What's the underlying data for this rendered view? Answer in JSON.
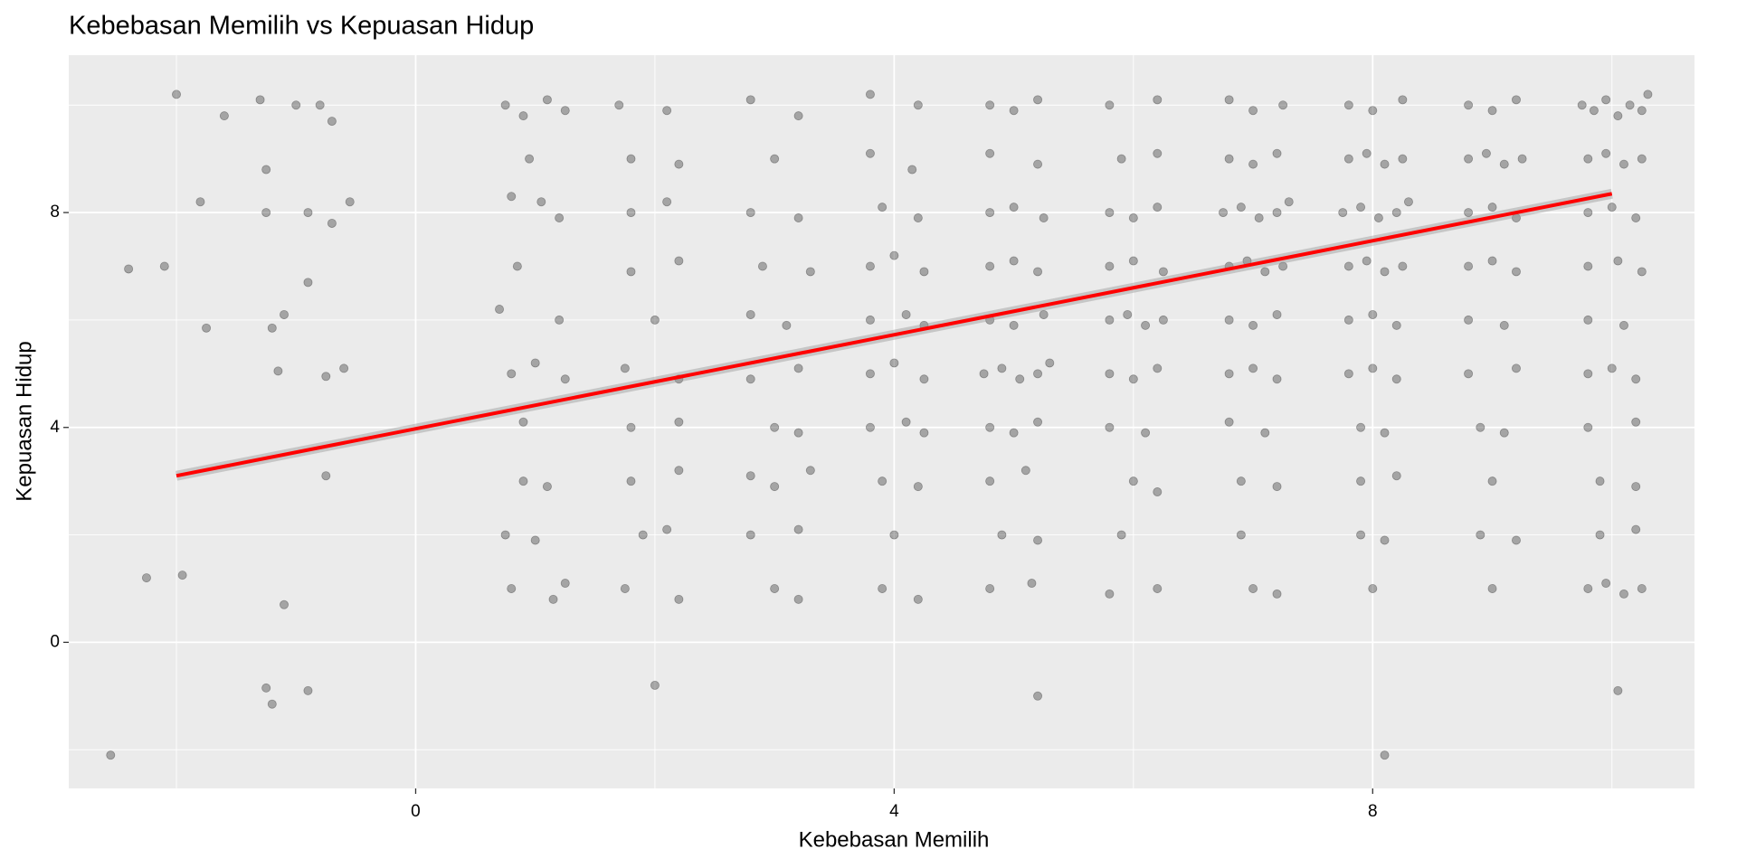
{
  "chart_data": {
    "type": "scatter",
    "title": "Kebebasan Memilih vs Kepuasan Hidup",
    "x_label": "Kebebasan Memilih",
    "y_label": "Kepuasan Hidup",
    "xlim": [
      -2.9,
      10.69
    ],
    "ylim": [
      -2.72,
      10.93
    ],
    "xticks": [
      0,
      4,
      8
    ],
    "yticks": [
      0,
      4,
      8
    ],
    "x_minor_grid": [
      -2,
      2,
      6,
      10
    ],
    "y_minor_grid": [
      -2,
      2,
      6,
      10
    ],
    "grid": true,
    "point_color": "#000000",
    "point_alpha": 0.3,
    "x": [
      -2.55,
      -2.4,
      -2.1,
      -2.0,
      -1.95,
      -1.8,
      -1.75,
      -1.6,
      -2.25,
      -1.3,
      -1.25,
      -1.2,
      -1.1,
      -1.15,
      -1.25,
      -1.2,
      -1.0,
      -0.9,
      -0.9,
      -0.8,
      -0.75,
      -0.6,
      -0.55,
      -0.7,
      -0.75,
      -0.9,
      -0.7,
      -1.25,
      -1.1,
      0.75,
      0.9,
      1.1,
      1.25,
      0.8,
      1.05,
      0.85,
      1.2,
      0.8,
      1.0,
      1.25,
      0.9,
      1.1,
      0.75,
      1.0,
      0.8,
      1.15,
      1.25,
      0.9,
      1.2,
      0.95,
      0.7,
      1.7,
      2.1,
      1.8,
      2.2,
      1.8,
      2.1,
      1.8,
      2.2,
      2.0,
      1.75,
      2.2,
      1.8,
      2.2,
      1.8,
      2.2,
      1.9,
      2.1,
      1.75,
      2.2,
      2.0,
      2.8,
      3.2,
      3.0,
      2.8,
      3.2,
      2.9,
      3.3,
      2.8,
      3.1,
      3.2,
      2.8,
      3.0,
      3.2,
      2.8,
      3.0,
      3.3,
      2.8,
      3.2,
      3.0,
      3.2,
      3.8,
      4.2,
      3.8,
      4.15,
      3.9,
      4.2,
      3.8,
      4.0,
      4.25,
      3.8,
      4.1,
      4.25,
      3.8,
      4.0,
      4.25,
      3.8,
      4.1,
      4.25,
      3.9,
      4.2,
      4.0,
      3.9,
      4.2,
      4.8,
      5.0,
      5.2,
      4.8,
      5.2,
      4.8,
      5.0,
      5.25,
      4.8,
      5.0,
      5.2,
      4.8,
      5.0,
      5.25,
      4.75,
      4.9,
      5.05,
      5.2,
      5.3,
      4.8,
      5.0,
      5.2,
      4.8,
      5.1,
      4.9,
      5.2,
      4.8,
      5.15,
      5.2,
      5.8,
      6.2,
      5.9,
      6.2,
      5.8,
      6.0,
      6.2,
      5.8,
      6.0,
      6.25,
      5.8,
      5.95,
      6.1,
      6.25,
      5.8,
      6.0,
      6.2,
      5.8,
      6.1,
      6.0,
      6.2,
      5.9,
      6.2,
      5.8,
      6.8,
      7.0,
      7.25,
      6.8,
      7.0,
      7.2,
      6.75,
      6.9,
      7.05,
      7.2,
      7.3,
      6.8,
      6.95,
      7.1,
      7.25,
      6.8,
      7.0,
      7.2,
      6.8,
      7.0,
      7.2,
      6.8,
      7.1,
      6.9,
      7.2,
      6.9,
      7.0,
      7.2,
      7.8,
      8.0,
      8.25,
      7.8,
      7.95,
      8.1,
      8.25,
      7.75,
      7.9,
      8.05,
      8.2,
      8.3,
      7.8,
      7.95,
      8.1,
      8.25,
      7.8,
      8.0,
      8.2,
      7.8,
      8.0,
      8.2,
      7.9,
      8.1,
      7.9,
      8.2,
      7.9,
      8.1,
      8.0,
      8.1,
      8.8,
      9.0,
      9.2,
      8.8,
      8.95,
      9.1,
      9.25,
      8.8,
      9.0,
      9.2,
      8.8,
      9.0,
      9.2,
      8.8,
      9.1,
      8.8,
      9.2,
      8.9,
      9.1,
      9.0,
      8.9,
      9.2,
      9.0,
      9.75,
      9.85,
      9.95,
      10.05,
      10.15,
      10.25,
      10.3,
      9.8,
      9.95,
      10.1,
      10.25,
      9.8,
      10.0,
      10.2,
      9.8,
      10.05,
      10.25,
      9.8,
      10.1,
      9.8,
      10.0,
      10.2,
      9.8,
      10.2,
      9.9,
      10.2,
      9.9,
      10.2,
      9.8,
      9.95,
      10.1,
      10.25,
      10.05
    ],
    "values": [
      -2.1,
      6.95,
      7.0,
      10.2,
      1.25,
      8.2,
      5.85,
      9.8,
      1.2,
      10.1,
      8.8,
      5.85,
      0.7,
      5.05,
      -0.85,
      -1.15,
      10.0,
      8.0,
      6.7,
      10.0,
      4.95,
      5.1,
      8.2,
      9.7,
      3.1,
      -0.9,
      7.8,
      8.0,
      6.1,
      10.0,
      9.8,
      10.1,
      9.9,
      8.3,
      8.2,
      7.0,
      7.9,
      5.0,
      5.2,
      4.9,
      3.0,
      2.9,
      2.0,
      1.9,
      1.0,
      0.8,
      1.1,
      4.1,
      6.0,
      9.0,
      6.2,
      10.0,
      9.9,
      9.0,
      8.9,
      8.0,
      8.2,
      6.9,
      7.1,
      6.0,
      5.1,
      4.9,
      4.0,
      4.1,
      3.0,
      3.2,
      2.0,
      2.1,
      1.0,
      0.8,
      -0.8,
      10.1,
      9.8,
      9.0,
      8.0,
      7.9,
      7.0,
      6.9,
      6.1,
      5.9,
      5.1,
      4.9,
      4.0,
      3.9,
      3.1,
      2.9,
      3.2,
      2.0,
      2.1,
      1.0,
      0.8,
      10.2,
      10.0,
      9.1,
      8.8,
      8.1,
      7.9,
      7.0,
      7.2,
      6.9,
      6.0,
      6.1,
      5.9,
      5.0,
      5.2,
      4.9,
      4.0,
      4.1,
      3.9,
      3.0,
      2.9,
      2.0,
      1.0,
      0.8,
      10.0,
      9.9,
      10.1,
      9.1,
      8.9,
      8.0,
      8.1,
      7.9,
      7.0,
      7.1,
      6.9,
      6.0,
      5.9,
      6.1,
      5.0,
      5.1,
      4.9,
      5.0,
      5.2,
      4.0,
      3.9,
      4.1,
      3.0,
      3.2,
      2.0,
      1.9,
      1.0,
      1.1,
      -1.0,
      10.0,
      10.1,
      9.0,
      9.1,
      8.0,
      7.9,
      8.1,
      7.0,
      7.1,
      6.9,
      6.0,
      6.1,
      5.9,
      6.0,
      5.0,
      4.9,
      5.1,
      4.0,
      3.9,
      3.0,
      2.8,
      2.0,
      1.0,
      0.9,
      10.1,
      9.9,
      10.0,
      9.0,
      8.9,
      9.1,
      8.0,
      8.1,
      7.9,
      8.0,
      8.2,
      7.0,
      7.1,
      6.9,
      7.0,
      6.0,
      5.9,
      6.1,
      5.0,
      5.1,
      4.9,
      4.1,
      3.9,
      3.0,
      2.9,
      2.0,
      1.0,
      0.9,
      10.0,
      9.9,
      10.1,
      9.0,
      9.1,
      8.9,
      9.0,
      8.0,
      8.1,
      7.9,
      8.0,
      8.2,
      7.0,
      7.1,
      6.9,
      7.0,
      6.0,
      6.1,
      5.9,
      5.0,
      5.1,
      4.9,
      4.0,
      3.9,
      3.0,
      3.1,
      2.0,
      1.9,
      1.0,
      -2.1,
      10.0,
      9.9,
      10.1,
      9.0,
      9.1,
      8.9,
      9.0,
      8.0,
      8.1,
      7.9,
      7.0,
      7.1,
      6.9,
      6.0,
      5.9,
      5.0,
      5.1,
      4.0,
      3.9,
      3.0,
      2.0,
      1.9,
      1.0,
      10.0,
      9.9,
      10.1,
      9.8,
      10.0,
      9.9,
      10.2,
      9.0,
      9.1,
      8.9,
      9.0,
      8.0,
      8.1,
      7.9,
      7.0,
      7.1,
      6.9,
      6.0,
      5.9,
      5.0,
      5.1,
      4.9,
      4.0,
      4.1,
      3.0,
      2.9,
      2.0,
      2.1,
      1.0,
      1.1,
      0.9,
      1.0,
      -0.9
    ],
    "trend": {
      "x": [
        -2,
        10
      ],
      "y": [
        3.1,
        8.35
      ],
      "color": "#ff0000"
    }
  }
}
